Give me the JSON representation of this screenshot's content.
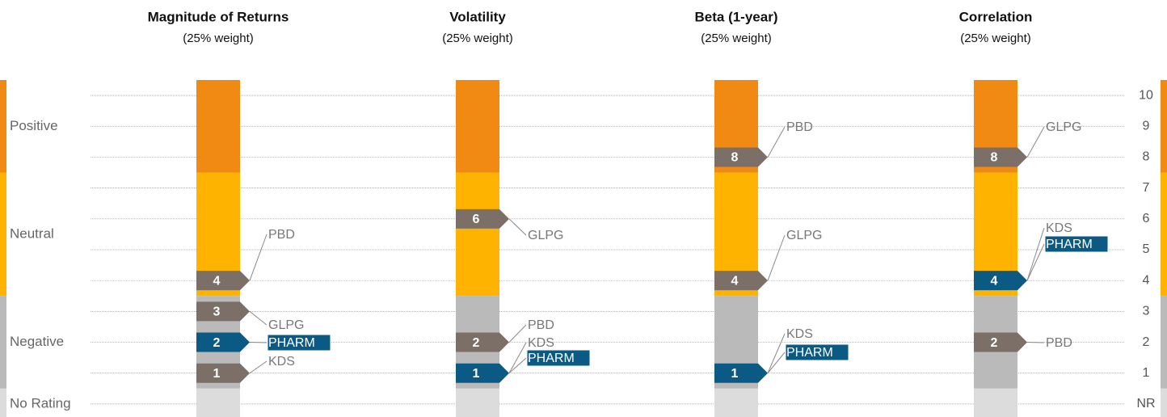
{
  "chart_data": {
    "type": "rating-columns",
    "ylim": [
      -0.5,
      10.5
    ],
    "yticks": [
      10,
      9,
      8,
      7,
      6,
      5,
      4,
      3,
      2,
      1,
      {
        "value": 0,
        "label": "NR"
      }
    ],
    "grid": true,
    "highlight": "PHARM",
    "highlight_color": "#0b5a84",
    "marker_color": "#7b6f67",
    "rating_bands": [
      {
        "label": "Positive",
        "from": 7.5,
        "to": 10.5,
        "color": "#f08a12"
      },
      {
        "label": "Neutral",
        "from": 3.5,
        "to": 7.5,
        "color": "#fdb300"
      },
      {
        "label": "Negative",
        "from": 0.5,
        "to": 3.5,
        "color": "#bababa"
      },
      {
        "label": "No Rating",
        "from": -0.5,
        "to": 0.5,
        "color": "#dcdcdc"
      }
    ],
    "columns": [
      {
        "title": "Magnitude of Returns",
        "subtitle": "(25% weight)",
        "markers": [
          {
            "value": 4,
            "companies": [
              "PBD"
            ]
          },
          {
            "value": 3,
            "companies": [
              "GLPG"
            ]
          },
          {
            "value": 2,
            "companies": [
              "PHARM"
            ]
          },
          {
            "value": 1,
            "companies": [
              "KDS"
            ]
          }
        ]
      },
      {
        "title": "Volatility",
        "subtitle": "(25% weight)",
        "markers": [
          {
            "value": 6,
            "companies": [
              "GLPG"
            ]
          },
          {
            "value": 2,
            "companies": [
              "PBD"
            ]
          },
          {
            "value": 1,
            "companies": [
              "KDS",
              "PHARM"
            ]
          }
        ]
      },
      {
        "title": "Beta (1-year)",
        "subtitle": "(25% weight)",
        "markers": [
          {
            "value": 8,
            "companies": [
              "PBD"
            ]
          },
          {
            "value": 4,
            "companies": [
              "GLPG"
            ]
          },
          {
            "value": 1,
            "companies": [
              "KDS",
              "PHARM"
            ]
          }
        ]
      },
      {
        "title": "Correlation",
        "subtitle": "(25% weight)",
        "markers": [
          {
            "value": 8,
            "companies": [
              "GLPG"
            ]
          },
          {
            "value": 4,
            "companies": [
              "KDS",
              "PHARM"
            ]
          },
          {
            "value": 2,
            "companies": [
              "PBD"
            ]
          }
        ]
      }
    ]
  }
}
